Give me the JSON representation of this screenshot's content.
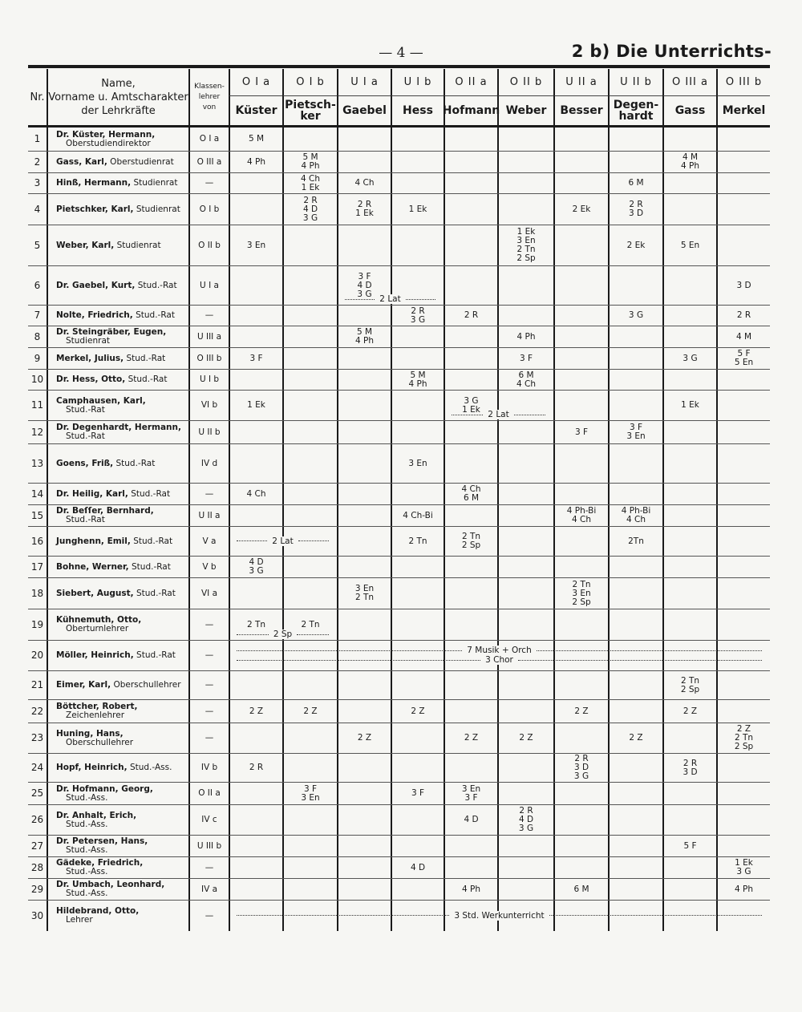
{
  "page_number": "— 4 —",
  "heading": "2 b) Die Unterrichts-",
  "header": {
    "nr": "Nr.",
    "name": "Name,\nVorname u. Amtscharakter\nder Lehrkräfte",
    "klassenlehrer": "Klassen-\nlehrer\nvon",
    "classes": [
      {
        "class": "O I a",
        "teacher": "Küster"
      },
      {
        "class": "O I b",
        "teacher": "Pietsch-\nker"
      },
      {
        "class": "U I a",
        "teacher": "Gaebel"
      },
      {
        "class": "U I b",
        "teacher": "Hess"
      },
      {
        "class": "O II a",
        "teacher": "Hofmann"
      },
      {
        "class": "O II b",
        "teacher": "Weber"
      },
      {
        "class": "U II a",
        "teacher": "Besser"
      },
      {
        "class": "U II b",
        "teacher": "Degen-\nhardt"
      },
      {
        "class": "O III a",
        "teacher": "Gass"
      },
      {
        "class": "O III b",
        "teacher": "Merkel"
      }
    ]
  },
  "rows": [
    {
      "nr": "1",
      "name": "Dr. Küster, Hermann,",
      "title": "",
      "sub": "Oberstudiendirektor",
      "kl": "O I a",
      "cells": [
        "5 M",
        "",
        "",
        "",
        "",
        "",
        "",
        "",
        "",
        ""
      ]
    },
    {
      "nr": "2",
      "name": "Gass, Karl,",
      "title": " Oberstudienrat",
      "sub": "",
      "kl": "O III a",
      "cells": [
        "4 Ph",
        "5 M\n4 Ph",
        "",
        "",
        "",
        "",
        "",
        "",
        "4 M\n4 Ph",
        ""
      ]
    },
    {
      "nr": "3",
      "name": "Hinß, Hermann,",
      "title": " Studienrat",
      "sub": "",
      "kl": "—",
      "cells": [
        "",
        "4 Ch\n1 Ek",
        "4 Ch",
        "",
        "",
        "",
        "",
        "6 M",
        "",
        ""
      ]
    },
    {
      "nr": "4",
      "name": "Pietschker, Karl,",
      "title": " Studienrat",
      "sub": "",
      "kl": "O I b",
      "cells": [
        "",
        "2 R\n4 D\n3 G",
        "2 R\n1 Ek",
        "1 Ek",
        "",
        "",
        "2 Ek",
        "2 R\n3 D",
        "",
        ""
      ]
    },
    {
      "nr": "5",
      "name": "Weber, Karl,",
      "title": " Studienrat",
      "sub": "",
      "kl": "O II b",
      "cells": [
        "3 En",
        "",
        "",
        "",
        "",
        "1 Ek\n3 En\n2 Tn\n2 Sp",
        "",
        "2 Ek",
        "5 En",
        ""
      ]
    },
    {
      "nr": "6",
      "name": "Dr. Gaebel, Kurt,",
      "title": " Stud.-Rat",
      "sub": "",
      "kl": "U I a",
      "cells": [
        "",
        "",
        "3 F\n4 D\n3 G\n ",
        "",
        "",
        "",
        "",
        "",
        "",
        "3 D"
      ],
      "spans": [
        {
          "from": 2,
          "to": 3,
          "lines": [
            "2 Lat"
          ]
        }
      ]
    },
    {
      "nr": "7",
      "name": "Nolte, Friedrich,",
      "title": " Stud.-Rat",
      "sub": "",
      "kl": "—",
      "cells": [
        "",
        "",
        "",
        "2 R\n3 G",
        "2 R",
        "",
        "",
        "3 G",
        "",
        "2 R"
      ]
    },
    {
      "nr": "8",
      "name": "Dr. Steingräber, Eugen,",
      "title": "",
      "sub": "Studienrat",
      "kl": "U III a",
      "cells": [
        "",
        "",
        "5 M\n4 Ph",
        "",
        "",
        "4 Ph",
        "",
        "",
        "",
        "4 M"
      ]
    },
    {
      "nr": "9",
      "name": "Merkel, Julius,",
      "title": " Stud.-Rat",
      "sub": "",
      "kl": "O III b",
      "cells": [
        "3 F",
        "",
        "",
        "",
        "",
        "3 F",
        "",
        "",
        "3 G",
        "5 F\n5 En"
      ]
    },
    {
      "nr": "10",
      "name": "Dr. Hess, Otto,",
      "title": " Stud.-Rat",
      "sub": "",
      "kl": "U I b",
      "cells": [
        "",
        "",
        "",
        "5 M\n4 Ph",
        "",
        "6 M\n4 Ch",
        "",
        "",
        "",
        ""
      ]
    },
    {
      "nr": "11",
      "name": "Camphausen, Karl,",
      "title": "",
      "sub": "Stud.-Rat",
      "kl": "VI b",
      "cells": [
        "1 Ek",
        "",
        "",
        "",
        "3 G\n1 Ek\n ",
        "",
        "",
        "",
        "1 Ek",
        ""
      ],
      "spans": [
        {
          "from": 4,
          "to": 5,
          "lines": [
            "2 Lat"
          ]
        }
      ]
    },
    {
      "nr": "12",
      "name": "Dr. Degenhardt, Hermann,",
      "title": "",
      "sub": "Stud.-Rat",
      "kl": "U II b",
      "cells": [
        "",
        "",
        "",
        "",
        "",
        "",
        "3 F",
        "3 F\n3 En",
        "",
        ""
      ]
    },
    {
      "nr": "13",
      "name": "Goens, Friß,",
      "title": " Stud.-Rat",
      "sub": "",
      "kl": "IV d",
      "cells": [
        "",
        "",
        "",
        "3 En",
        "",
        "",
        "",
        "",
        "",
        ""
      ]
    },
    {
      "nr": "14",
      "name": "Dr. Heilig, Karl,",
      "title": " Stud.-Rat",
      "sub": "",
      "kl": "—",
      "cells": [
        "4 Ch",
        "",
        "",
        "",
        "4 Ch\n6 M",
        "",
        "",
        "",
        "",
        ""
      ]
    },
    {
      "nr": "15",
      "name": "Dr. Beſſer, Bernhard,",
      "title": "",
      "sub": "Stud.-Rat",
      "kl": "U II a",
      "cells": [
        "",
        "",
        "",
        "4 Ch-Bi",
        "",
        "",
        "4 Ph-Bi\n4 Ch",
        "4 Ph-Bi\n4 Ch",
        "",
        ""
      ]
    },
    {
      "nr": "16",
      "name": "Junghenn, Emil,",
      "title": " Stud.-Rat",
      "sub": "",
      "kl": "V a",
      "cells": [
        "",
        "",
        "",
        "2 Tn",
        "2 Tn\n2 Sp",
        "",
        "",
        "2Tn",
        "",
        ""
      ],
      "spans": [
        {
          "from": 0,
          "to": 1,
          "lines": [
            "2 Lat"
          ]
        }
      ]
    },
    {
      "nr": "17",
      "name": "Bohne, Werner,",
      "title": " Stud.-Rat",
      "sub": "",
      "kl": "V b",
      "cells": [
        "4 D\n3 G",
        "",
        "",
        "",
        "",
        "",
        "",
        "",
        "",
        ""
      ]
    },
    {
      "nr": "18",
      "name": "Siebert, August,",
      "title": " Stud.-Rat",
      "sub": "",
      "kl": "VI a",
      "cells": [
        "",
        "",
        "3 En\n2 Tn",
        "",
        "",
        "",
        "2 Tn\n3 En\n2 Sp",
        "",
        "",
        ""
      ]
    },
    {
      "nr": "19",
      "name": "Kühnemuth, Otto,",
      "title": "",
      "sub": "Oberturnlehrer",
      "kl": "—",
      "cells": [
        "2 Tn\n ",
        "2 Tn\n ",
        "",
        "",
        "",
        "",
        "",
        "",
        "",
        ""
      ],
      "spans": [
        {
          "from": 0,
          "to": 1,
          "lines": [
            "2 Sp"
          ]
        }
      ]
    },
    {
      "nr": "20",
      "name": "Möller, Heinrich,",
      "title": " Stud.-Rat",
      "sub": "",
      "kl": "—",
      "cells": [
        "",
        "",
        "",
        "",
        "",
        "",
        "",
        "",
        "",
        ""
      ],
      "spans": [
        {
          "from": 0,
          "to": 9,
          "lines": [
            "7 Musik + Orch",
            "3 Chor"
          ]
        }
      ]
    },
    {
      "nr": "21",
      "name": "Eimer, Karl,",
      "title": " Oberschullehrer",
      "sub": "",
      "kl": "—",
      "cells": [
        "",
        "",
        "",
        "",
        "",
        "",
        "",
        "",
        "2 Tn\n2 Sp",
        ""
      ]
    },
    {
      "nr": "22",
      "name": "Böttcher, Robert,",
      "title": "",
      "sub": "Zeichenlehrer",
      "kl": "—",
      "cells": [
        "2 Z",
        "2 Z",
        "",
        "2 Z",
        "",
        "",
        "2 Z",
        "",
        "2 Z",
        ""
      ]
    },
    {
      "nr": "23",
      "name": "Huning, Hans,",
      "title": "",
      "sub": "Oberschullehrer",
      "kl": "—",
      "cells": [
        "",
        "",
        "2 Z",
        "",
        "2 Z",
        "2 Z",
        "",
        "2 Z",
        "",
        "2 Z\n2 Tn\n2 Sp"
      ]
    },
    {
      "nr": "24",
      "name": "Hopf, Heinrich,",
      "title": " Stud.-Ass.",
      "sub": "",
      "kl": "IV b",
      "cells": [
        "2 R",
        "",
        "",
        "",
        "",
        "",
        "2 R\n3 D\n3 G",
        "",
        "2 R\n3 D",
        ""
      ]
    },
    {
      "nr": "25",
      "name": "Dr. Hofmann, Georg,",
      "title": "",
      "sub": "Stud.-Ass.",
      "kl": "O II a",
      "cells": [
        "",
        "3 F\n3 En",
        "",
        "3 F",
        "3 En\n3 F",
        "",
        "",
        "",
        "",
        ""
      ]
    },
    {
      "nr": "26",
      "name": "Dr. Anhalt, Erich,",
      "title": "",
      "sub": "Stud.-Ass.",
      "kl": "IV c",
      "cells": [
        "",
        "",
        "",
        "",
        "4 D",
        "2 R\n4 D\n3 G",
        "",
        "",
        "",
        ""
      ]
    },
    {
      "nr": "27",
      "name": "Dr. Petersen, Hans,",
      "title": "",
      "sub": "Stud.-Ass.",
      "kl": "U III b",
      "cells": [
        "",
        "",
        "",
        "",
        "",
        "",
        "",
        "",
        "5 F",
        ""
      ]
    },
    {
      "nr": "28",
      "name": "Gädeke, Friedrich,",
      "title": "",
      "sub": "Stud.-Ass.",
      "kl": "—",
      "cells": [
        "",
        "",
        "",
        "4 D",
        "",
        "",
        "",
        "",
        "",
        "1 Ek\n3 G"
      ]
    },
    {
      "nr": "29",
      "name": "Dr. Umbach, Leonhard,",
      "title": "",
      "sub": "Stud.-Ass.",
      "kl": "IV a",
      "cells": [
        "",
        "",
        "",
        "",
        "4 Ph",
        "",
        "6 M",
        "",
        "",
        "4 Ph"
      ]
    },
    {
      "nr": "30",
      "name": "Hildebrand, Otto,",
      "title": "",
      "sub": "Lehrer",
      "kl": "—",
      "cells": [
        "",
        "",
        "",
        "",
        "",
        "",
        "",
        "",
        "",
        ""
      ],
      "spans": [
        {
          "from": 0,
          "to": 9,
          "lines": [
            "3 Std. Werkunterricht"
          ]
        }
      ]
    }
  ]
}
